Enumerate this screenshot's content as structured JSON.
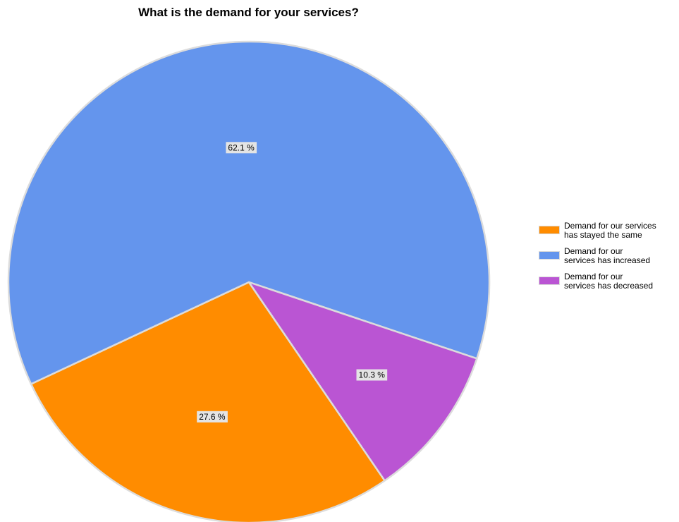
{
  "chart_data": {
    "type": "pie",
    "title": "What is the demand for your services?",
    "legend_position": "right",
    "slices": [
      {
        "name": "Demand for our services has stayed the same",
        "value": 27.6,
        "label": "27.6 %",
        "color": "#ff8c00"
      },
      {
        "name": "Demand for our services has increased",
        "value": 62.1,
        "label": "62.1 %",
        "color": "#6495ed"
      },
      {
        "name": "Demand for our services has decreased",
        "value": 10.3,
        "label": "10.3 %",
        "color": "#ba55d3"
      }
    ],
    "legend": [
      {
        "line1": "Demand for our services",
        "line2": "has stayed the same",
        "color": "#ff8c00"
      },
      {
        "line1": "Demand for our",
        "line2": "services has increased",
        "color": "#6495ed"
      },
      {
        "line1": "Demand for our",
        "line2": "services has decreased",
        "color": "#ba55d3"
      }
    ]
  }
}
